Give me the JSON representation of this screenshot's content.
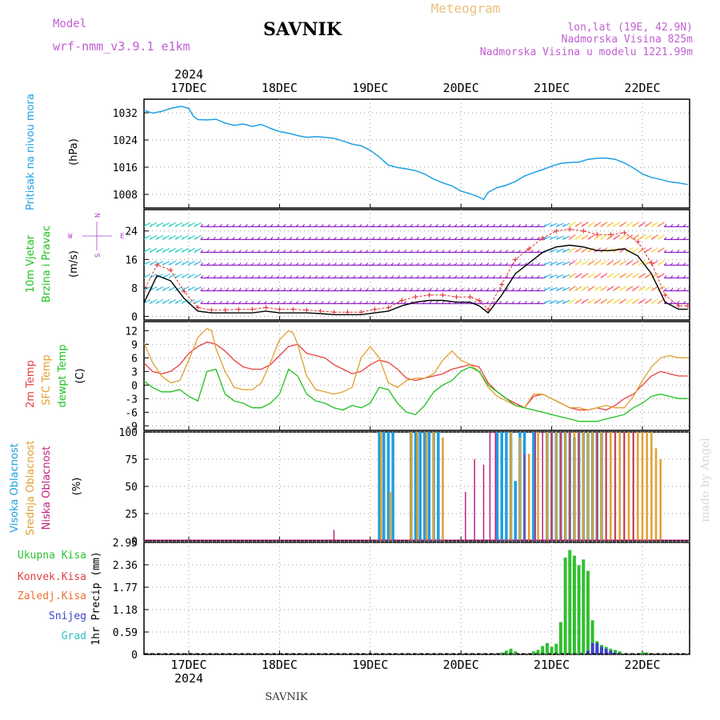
{
  "header": {
    "model_label": "Model",
    "model_name": "wrf-nmm_v3.9.1 e1km",
    "station": "SAVNIK",
    "product": "Meteogram",
    "lonlat": "lon,lat (19E, 42.9N)",
    "altitude": "Nadmorska Visina 825m",
    "model_altitude": "Nadmorska Visina u modelu 1221.99m"
  },
  "footer": {
    "station": "SAVNIK",
    "credit": "made by Angel"
  },
  "time_axis": {
    "year": "2024",
    "days": [
      "17DEC",
      "18DEC",
      "19DEC",
      "20DEC",
      "21DEC",
      "22DEC"
    ]
  },
  "colors": {
    "pressure": "#1ea0e6",
    "wind_speed": "#000000",
    "gust": "#e03030",
    "t2m": "#e84040",
    "tsfc": "#e0a030",
    "dewpt": "#20c020",
    "cloud_high": "#1e9ee0",
    "cloud_mid": "#e0a030",
    "cloud_low": "#c02080",
    "precip_total": "#30c030",
    "precip_conv": "#e04040",
    "precip_frozen": "#f07030",
    "precip_snow": "#4040d0",
    "precip_graupel": "#30c0c0"
  },
  "chart_data": [
    {
      "type": "line",
      "name": "pressure",
      "title": "Pritisak na nivou mora",
      "ylabel": "(hPa)",
      "ylim": [
        1004,
        1036
      ],
      "yticks": [
        "1008",
        "1016",
        "1024",
        "1032"
      ],
      "series": [
        {
          "name": "",
          "x": [
            0,
            0.1,
            0.2,
            0.3,
            0.42,
            0.5,
            0.55,
            0.6,
            0.7,
            0.8,
            0.9,
            1.0,
            1.1,
            1.2,
            1.3,
            1.4,
            1.5,
            1.6,
            1.7,
            1.8,
            1.9,
            2.0,
            2.1,
            2.2,
            2.3,
            2.4,
            2.5,
            2.6,
            2.7,
            2.8,
            2.9,
            3.0,
            3.1,
            3.2,
            3.3,
            3.4,
            3.5,
            3.6,
            3.7,
            3.75,
            3.8,
            3.9,
            4.0,
            4.1,
            4.2,
            4.3,
            4.4,
            4.5,
            4.6,
            4.7,
            4.8,
            4.9,
            5.0,
            5.1,
            5.2,
            5.3,
            5.4,
            5.5,
            5.6,
            5.7,
            5.8,
            5.9,
            6.0
          ],
          "values": [
            1032.8,
            1031.9,
            1032.4,
            1033.3,
            1033.9,
            1033.3,
            1031.0,
            1030.0,
            1029.9,
            1030.1,
            1029.0,
            1028.3,
            1028.7,
            1028.0,
            1028.6,
            1027.4,
            1026.5,
            1026.0,
            1025.3,
            1024.8,
            1025.0,
            1024.8,
            1024.5,
            1023.7,
            1022.8,
            1022.3,
            1021.0,
            1019.0,
            1016.6,
            1015.9,
            1015.5,
            1015.0,
            1014.0,
            1012.5,
            1011.4,
            1010.5,
            1009.0,
            1008.2,
            1007.2,
            1006.5,
            1008.6,
            1010.0,
            1010.7,
            1011.8,
            1013.4,
            1014.4,
            1015.3,
            1016.3,
            1017.1,
            1017.4,
            1017.5,
            1018.3,
            1018.6,
            1018.7,
            1018.3,
            1017.3,
            1015.8,
            1014.0,
            1013.0,
            1012.4,
            1011.7,
            1011.4,
            1010.9
          ]
        }
      ]
    },
    {
      "type": "line",
      "name": "wind",
      "title": "10m Vjetar",
      "subtitle": "Brzina i Pravac",
      "ylabel": "(m/s)",
      "ylim": [
        -1,
        30
      ],
      "yticks": [
        "0",
        "8",
        "16",
        "24"
      ],
      "compass": {
        "n": "N",
        "s": "S",
        "e": "E",
        "w": "W"
      },
      "series": [
        {
          "name": "",
          "x": [
            0,
            0.15,
            0.3,
            0.45,
            0.6,
            0.75,
            0.9,
            1.05,
            1.2,
            1.35,
            1.5,
            1.65,
            1.8,
            1.95,
            2.1,
            2.25,
            2.4,
            2.55,
            2.7,
            2.85,
            3.0,
            3.15,
            3.3,
            3.45,
            3.6,
            3.7,
            3.8,
            3.95,
            4.1,
            4.25,
            4.4,
            4.55,
            4.7,
            4.85,
            5.0,
            5.15,
            5.3,
            5.45,
            5.6,
            5.75,
            5.9,
            6.0
          ],
          "values": [
            3.5,
            11.5,
            10.0,
            5.0,
            1.5,
            1.0,
            1.0,
            1.0,
            1.0,
            1.5,
            1.0,
            1.0,
            1.0,
            0.8,
            0.5,
            0.5,
            0.5,
            1.0,
            1.5,
            3.0,
            4.0,
            4.5,
            4.5,
            4.0,
            4.0,
            3.0,
            1.0,
            6.0,
            12.0,
            15.0,
            18.0,
            19.5,
            20.0,
            19.5,
            18.5,
            18.5,
            19.0,
            17.0,
            12.0,
            4.0,
            2.0,
            2.0
          ]
        },
        {
          "name": "",
          "x": [
            0,
            0.15,
            0.3,
            0.45,
            0.6,
            0.75,
            0.9,
            1.05,
            1.2,
            1.35,
            1.5,
            1.65,
            1.8,
            1.95,
            2.1,
            2.25,
            2.4,
            2.55,
            2.7,
            2.85,
            3.0,
            3.15,
            3.3,
            3.45,
            3.6,
            3.7,
            3.8,
            3.95,
            4.1,
            4.25,
            4.4,
            4.55,
            4.7,
            4.85,
            5.0,
            5.15,
            5.3,
            5.45,
            5.6,
            5.75,
            5.9,
            6.0
          ],
          "values": [
            7.0,
            14.5,
            13.0,
            7.0,
            2.5,
            1.8,
            1.8,
            2.0,
            2.0,
            2.5,
            2.0,
            2.0,
            1.8,
            1.5,
            1.2,
            1.2,
            1.2,
            2.0,
            2.5,
            4.5,
            5.5,
            6.0,
            6.0,
            5.5,
            5.5,
            4.5,
            2.0,
            9.0,
            16.0,
            19.0,
            22.0,
            24.0,
            24.5,
            24.0,
            23.0,
            23.0,
            23.5,
            21.0,
            15.0,
            6.0,
            3.0,
            3.0
          ]
        }
      ]
    },
    {
      "type": "line",
      "name": "temperature",
      "title": "2m Temp",
      "subtitle": "SFC Temp",
      "subtitle2": "dewpt Temp",
      "ylabel": "(C)",
      "ylim": [
        -10,
        14
      ],
      "yticks": [
        "-9",
        "-6",
        "-3",
        "0",
        "3",
        "6",
        "9",
        "12"
      ],
      "series": [
        {
          "name": "2m Temp",
          "x": [
            0,
            0.1,
            0.2,
            0.3,
            0.4,
            0.5,
            0.6,
            0.7,
            0.8,
            0.9,
            1.0,
            1.1,
            1.2,
            1.3,
            1.4,
            1.5,
            1.6,
            1.7,
            1.8,
            1.9,
            2.0,
            2.1,
            2.2,
            2.3,
            2.4,
            2.5,
            2.6,
            2.7,
            2.8,
            2.9,
            3.0,
            3.1,
            3.2,
            3.3,
            3.4,
            3.5,
            3.6,
            3.7,
            3.8,
            3.9,
            4.0,
            4.1,
            4.2,
            4.3,
            4.4,
            4.5,
            4.6,
            4.7,
            4.8,
            4.9,
            5.0,
            5.1,
            5.2,
            5.3,
            5.4,
            5.5,
            5.6,
            5.7,
            5.8,
            5.9,
            6.0
          ],
          "values": [
            5.0,
            3.0,
            2.5,
            3.0,
            4.5,
            7.0,
            8.5,
            9.5,
            9.0,
            7.5,
            5.5,
            4.0,
            3.5,
            3.5,
            4.5,
            6.5,
            8.5,
            9.0,
            7.0,
            6.5,
            6.0,
            4.5,
            3.5,
            2.5,
            3.0,
            4.5,
            5.5,
            5.0,
            3.5,
            1.5,
            1.0,
            1.5,
            2.0,
            2.5,
            3.5,
            4.0,
            4.5,
            4.0,
            0.5,
            -1.5,
            -3.0,
            -4.0,
            -5.0,
            -2.5,
            -2.0,
            -3.0,
            -4.0,
            -5.0,
            -5.5,
            -5.5,
            -5.0,
            -5.5,
            -4.5,
            -3.0,
            -2.0,
            0.0,
            2.0,
            3.0,
            2.5,
            2.0,
            2.0
          ]
        },
        {
          "name": "SFC Temp",
          "x": [
            0,
            0.1,
            0.2,
            0.3,
            0.4,
            0.5,
            0.6,
            0.7,
            0.75,
            0.8,
            0.9,
            1.0,
            1.1,
            1.2,
            1.3,
            1.4,
            1.5,
            1.6,
            1.65,
            1.7,
            1.8,
            1.9,
            2.0,
            2.1,
            2.2,
            2.3,
            2.4,
            2.5,
            2.6,
            2.7,
            2.8,
            2.9,
            3.0,
            3.1,
            3.2,
            3.3,
            3.4,
            3.5,
            3.6,
            3.7,
            3.8,
            3.9,
            4.0,
            4.1,
            4.2,
            4.3,
            4.4,
            4.5,
            4.6,
            4.7,
            4.8,
            4.9,
            5.0,
            5.1,
            5.2,
            5.3,
            5.4,
            5.5,
            5.6,
            5.7,
            5.8,
            5.9,
            6.0
          ],
          "values": [
            9.5,
            5.0,
            2.0,
            0.5,
            1.0,
            5.5,
            10.5,
            12.5,
            12.0,
            8.0,
            3.0,
            -0.5,
            -1.0,
            -1.0,
            0.5,
            5.0,
            10.0,
            12.0,
            11.5,
            9.0,
            2.0,
            -1.0,
            -1.5,
            -2.0,
            -1.5,
            -0.5,
            6.0,
            8.5,
            6.0,
            0.5,
            -0.5,
            1.0,
            1.5,
            1.5,
            2.5,
            5.5,
            7.5,
            5.5,
            4.5,
            3.0,
            -0.5,
            -2.5,
            -3.5,
            -4.5,
            -5.0,
            -2.0,
            -2.0,
            -3.0,
            -4.0,
            -5.0,
            -5.0,
            -5.5,
            -5.0,
            -4.5,
            -5.0,
            -5.0,
            -2.5,
            1.0,
            4.0,
            6.0,
            6.5,
            6.0,
            6.0
          ]
        },
        {
          "name": "dewpt Temp",
          "x": [
            0,
            0.1,
            0.2,
            0.3,
            0.4,
            0.5,
            0.6,
            0.7,
            0.8,
            0.9,
            1.0,
            1.1,
            1.2,
            1.3,
            1.4,
            1.5,
            1.6,
            1.7,
            1.8,
            1.9,
            2.0,
            2.1,
            2.2,
            2.3,
            2.4,
            2.5,
            2.6,
            2.7,
            2.8,
            2.9,
            3.0,
            3.1,
            3.2,
            3.3,
            3.4,
            3.5,
            3.6,
            3.7,
            3.8,
            3.9,
            4.0,
            4.1,
            4.2,
            4.3,
            4.4,
            4.5,
            4.6,
            4.7,
            4.8,
            4.9,
            5.0,
            5.1,
            5.2,
            5.3,
            5.4,
            5.5,
            5.6,
            5.7,
            5.8,
            5.9,
            6.0
          ],
          "values": [
            1.0,
            -0.5,
            -1.5,
            -1.5,
            -1.0,
            -2.5,
            -3.5,
            3.0,
            3.5,
            -2.0,
            -3.5,
            -4.0,
            -5.0,
            -5.0,
            -4.0,
            -2.0,
            3.5,
            2.0,
            -2.0,
            -3.5,
            -4.0,
            -5.0,
            -5.5,
            -4.5,
            -5.0,
            -4.0,
            -0.5,
            -1.0,
            -4.0,
            -6.0,
            -6.5,
            -4.5,
            -1.5,
            0.0,
            1.0,
            3.0,
            4.0,
            3.0,
            0.0,
            -1.5,
            -3.0,
            -4.5,
            -5.0,
            -5.5,
            -6.0,
            -6.5,
            -7.0,
            -7.5,
            -8.0,
            -8.0,
            -8.0,
            -7.5,
            -7.0,
            -6.5,
            -5.0,
            -4.0,
            -2.5,
            -2.0,
            -2.5,
            -3.0,
            -3.0
          ]
        }
      ]
    },
    {
      "type": "bar",
      "name": "clouds",
      "title": "Visoka Oblacnost",
      "subtitle": "Srednja Oblacnost",
      "subtitle2": "Niska Oblacnost",
      "ylabel": "(%)",
      "ylim": [
        0,
        100
      ],
      "yticks": [
        "0",
        "25",
        "50",
        "75",
        "100"
      ],
      "series": [
        {
          "name": "Visoka Oblacnost",
          "x": [
            2.6,
            2.65,
            2.7,
            2.75,
            2.95,
            3.0,
            3.05,
            3.1,
            3.15,
            3.2,
            3.25,
            3.9,
            3.95,
            4.0,
            4.05,
            4.1,
            4.15,
            4.2,
            4.3,
            4.45,
            4.5,
            4.55,
            4.6,
            4.65,
            4.7,
            4.75,
            4.8,
            4.85,
            4.9,
            4.95,
            5.0,
            5.05
          ],
          "values": [
            100,
            100,
            100,
            100,
            100,
            100,
            100,
            100,
            100,
            100,
            100,
            100,
            100,
            100,
            100,
            55,
            100,
            100,
            100,
            100,
            100,
            100,
            100,
            100,
            100,
            95,
            100,
            100,
            100,
            100,
            100,
            100
          ]
        },
        {
          "name": "Srednja Oblacnost",
          "x": [
            2.62,
            2.72,
            2.95,
            3.02,
            3.12,
            3.2,
            3.3,
            4.05,
            4.15,
            4.25,
            4.35,
            4.45,
            4.5,
            4.55,
            4.6,
            4.65,
            4.7,
            4.75,
            4.8,
            4.85,
            4.9,
            4.95,
            5.0,
            5.05,
            5.1,
            5.15,
            5.2,
            5.25,
            5.3,
            5.35,
            5.4,
            5.45,
            5.5,
            5.55,
            5.6,
            5.65,
            5.7
          ],
          "values": [
            100,
            45,
            100,
            100,
            100,
            100,
            95,
            100,
            95,
            80,
            100,
            100,
            100,
            100,
            100,
            100,
            100,
            100,
            100,
            100,
            100,
            100,
            100,
            100,
            100,
            100,
            100,
            100,
            100,
            100,
            100,
            100,
            100,
            100,
            100,
            85,
            75
          ]
        },
        {
          "name": "Niska Oblacnost",
          "x": [
            2.1,
            3.55,
            3.65,
            3.75,
            3.82,
            3.88,
            4.2,
            4.32,
            4.4,
            4.5,
            4.6,
            4.7,
            4.8,
            5.0,
            5.1,
            5.2,
            5.3,
            5.4
          ],
          "values": [
            10,
            45,
            75,
            70,
            100,
            100,
            80,
            100,
            100,
            100,
            100,
            100,
            100,
            100,
            100,
            100,
            100,
            100
          ]
        }
      ]
    },
    {
      "type": "bar",
      "name": "precip",
      "title": "Ukupna Kisa",
      "subtitle": "Konvek.Kisa",
      "subtitle2": "Zaledj.Kisa",
      "subtitle3": "Snijeg",
      "subtitle4": "Grad",
      "ylabel": "1hr Precip (mm)",
      "ylim": [
        0,
        2.95
      ],
      "yticks": [
        "0",
        "0.59",
        "1.18",
        "1.77",
        "2.36",
        "2.95"
      ],
      "series": [
        {
          "name": "Ukupna Kisa",
          "x": [
            3.95,
            4.0,
            4.05,
            4.1,
            4.3,
            4.35,
            4.4,
            4.45,
            4.5,
            4.55,
            4.6,
            4.65,
            4.7,
            4.75,
            4.8,
            4.85,
            4.9,
            4.95,
            5.0,
            5.05,
            5.1,
            5.15,
            5.2,
            5.25,
            5.5,
            5.55
          ],
          "values": [
            0.05,
            0.1,
            0.15,
            0.08,
            0.08,
            0.12,
            0.22,
            0.3,
            0.2,
            0.28,
            0.85,
            2.55,
            2.75,
            2.6,
            2.35,
            2.5,
            2.2,
            0.9,
            0.35,
            0.25,
            0.2,
            0.15,
            0.12,
            0.08,
            0.05,
            0.05
          ]
        },
        {
          "name": "Snijeg",
          "x": [
            4.9,
            4.95,
            5.0,
            5.05,
            5.1,
            5.15,
            5.2
          ],
          "values": [
            0.1,
            0.3,
            0.3,
            0.2,
            0.15,
            0.1,
            0.05
          ]
        }
      ]
    }
  ]
}
